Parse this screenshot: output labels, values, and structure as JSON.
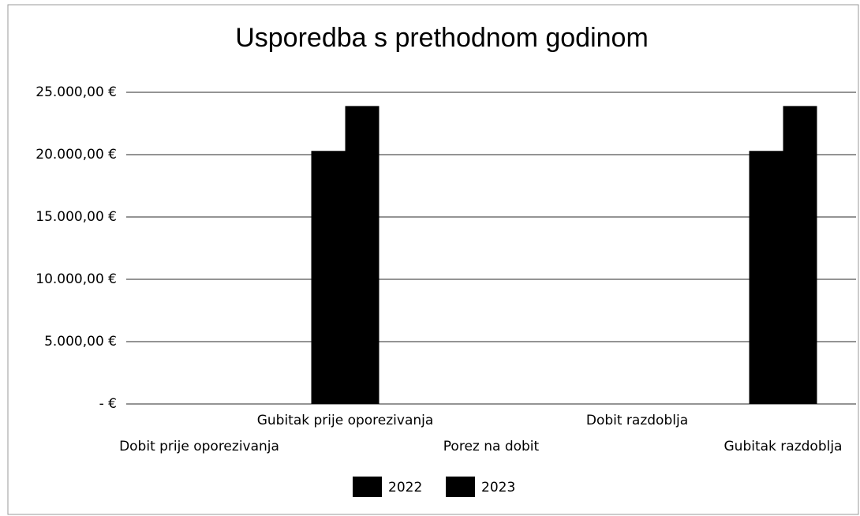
{
  "chart_data": {
    "type": "bar",
    "title": "Usporedba s prethodnom godinom",
    "categories": [
      "Dobit prije oporezivanja",
      "Gubitak prije oporezivanja",
      "Porez na dobit",
      "Dobit razdoblja",
      "Gubitak razdoblja"
    ],
    "series": [
      {
        "name": "2022",
        "color": "#000000",
        "values": [
          0,
          20300,
          0,
          0,
          20300
        ]
      },
      {
        "name": "2023",
        "color": "#000000",
        "values": [
          0,
          23900,
          0,
          0,
          23900
        ]
      }
    ],
    "ylim": [
      0,
      25000
    ],
    "yticks": [
      {
        "value": 0,
        "label": "- €"
      },
      {
        "value": 5000,
        "label": "5.000,00 €"
      },
      {
        "value": 10000,
        "label": "10.000,00 €"
      },
      {
        "value": 15000,
        "label": "15.000,00 €"
      },
      {
        "value": 20000,
        "label": "20.000,00 €"
      },
      {
        "value": 25000,
        "label": "25.000,00 €"
      }
    ],
    "grid": true,
    "legend": "bottom"
  }
}
